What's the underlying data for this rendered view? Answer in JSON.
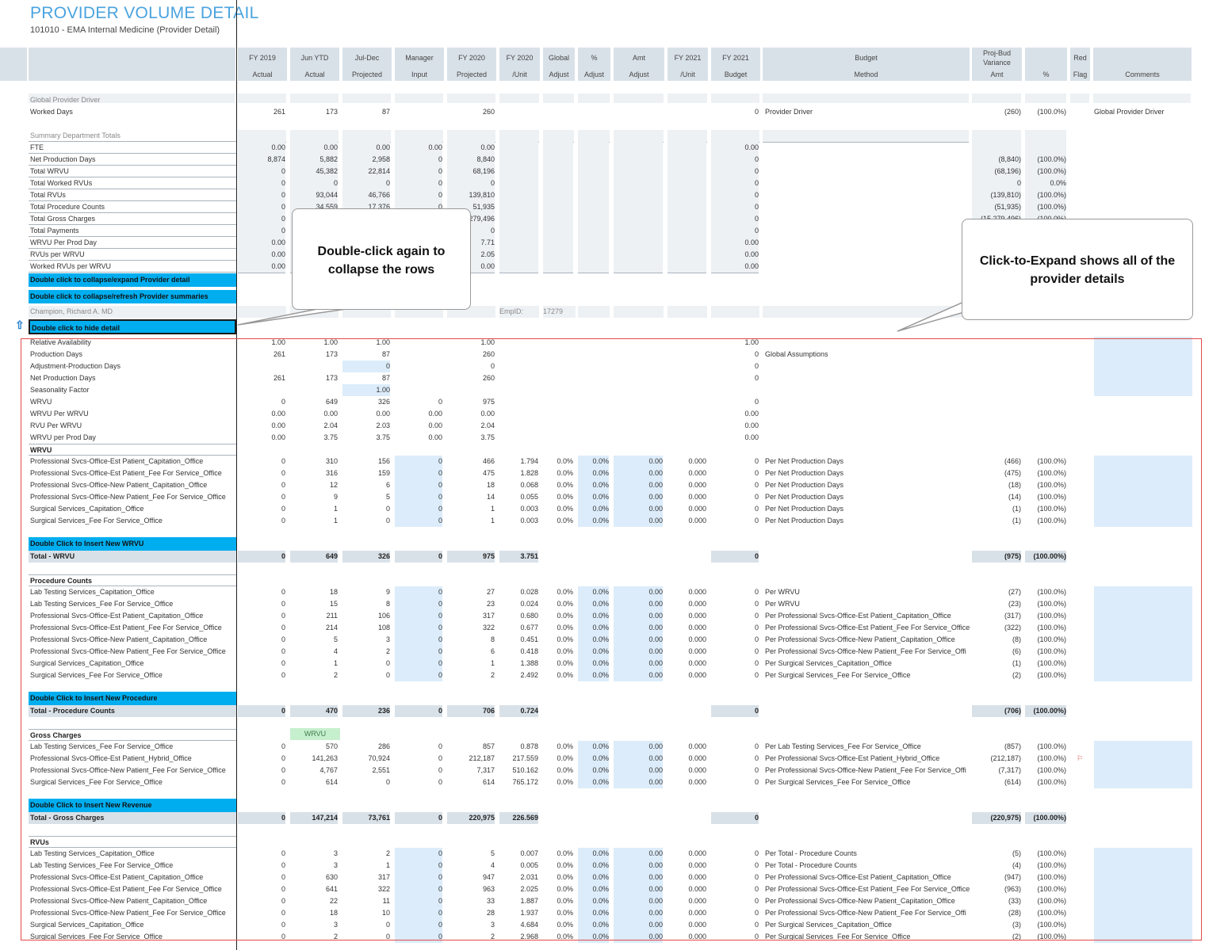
{
  "title": "PROVIDER VOLUME DETAIL",
  "subtitle": "101010 - EMA Internal Medicine (Provider Detail)",
  "columns": [
    {
      "l1": "FY 2019",
      "l2": "Actual"
    },
    {
      "l1": "Jun YTD",
      "l2": "Actual"
    },
    {
      "l1": "Jul-Dec",
      "l2": "Projected"
    },
    {
      "l1": "Manager",
      "l2": "Input"
    },
    {
      "l1": "FY 2020",
      "l2": "Projected"
    },
    {
      "l1": "FY 2020",
      "l2": "/Unit"
    },
    {
      "l1": "Global",
      "l2": "Adjust"
    },
    {
      "l1": "%",
      "l2": "Adjust"
    },
    {
      "l1": "Amt",
      "l2": "Adjust"
    },
    {
      "l1": "FY 2021",
      "l2": "/Unit"
    },
    {
      "l1": "FY 2021",
      "l2": "Budget"
    },
    {
      "l1": "Budget",
      "l2": "Method"
    },
    {
      "l1": "Proj-Bud Variance",
      "l2": "Amt"
    },
    {
      "l1": "",
      "l2": "%"
    },
    {
      "l1": "Red",
      "l2": "Flag"
    },
    {
      "l1": "",
      "l2": "Comments"
    }
  ],
  "global_driver": {
    "section": "Global Provider Driver",
    "row": {
      "label": "Worked Days",
      "v": [
        "261",
        "173",
        "87",
        "",
        "260",
        "",
        "",
        "",
        "",
        "",
        "0"
      ],
      "method": "Provider Driver",
      "var": "(260)",
      "pct": "(100.0%)",
      "comment": "Global Provider Driver"
    }
  },
  "summary": {
    "section": "Summary Department Totals",
    "rows": [
      {
        "label": "FTE",
        "v": [
          "0.00",
          "0.00",
          "0.00",
          "0.00",
          "0.00",
          "",
          "",
          "",
          "",
          "",
          "0.00"
        ],
        "var": "",
        "pct": ""
      },
      {
        "label": "Net Production Days",
        "v": [
          "8,874",
          "5,882",
          "2,958",
          "0",
          "8,840",
          "",
          "",
          "",
          "",
          "",
          "0"
        ],
        "var": "(8,840)",
        "pct": "(100.0%)"
      },
      {
        "label": "Total WRVU",
        "v": [
          "0",
          "45,382",
          "22,814",
          "0",
          "68,196",
          "",
          "",
          "",
          "",
          "",
          "0"
        ],
        "var": "(68,196)",
        "pct": "(100.0%)"
      },
      {
        "label": "Total Worked RVUs",
        "v": [
          "0",
          "0",
          "0",
          "0",
          "0",
          "",
          "",
          "",
          "",
          "",
          "0"
        ],
        "var": "0",
        "pct": "0.0%"
      },
      {
        "label": "Total RVUs",
        "v": [
          "0",
          "93,044",
          "46,766",
          "0",
          "139,810",
          "",
          "",
          "",
          "",
          "",
          "0"
        ],
        "var": "(139,810)",
        "pct": "(100.0%)"
      },
      {
        "label": "Total Procedure Counts",
        "v": [
          "0",
          "34,559",
          "17,376",
          "0",
          "51,935",
          "",
          "",
          "",
          "",
          "",
          "0"
        ],
        "var": "(51,935)",
        "pct": "(100.0%)"
      },
      {
        "label": "Total Gross Charges",
        "v": [
          "0",
          "",
          "",
          "",
          "279,496",
          "",
          "",
          "",
          "",
          "",
          "0"
        ],
        "var": "(15,279,496)",
        "pct": "(100.0%)"
      },
      {
        "label": "Total Payments",
        "v": [
          "0",
          "",
          "",
          "",
          "0",
          "",
          "",
          "",
          "",
          "",
          "0"
        ],
        "var": "",
        "pct": ""
      },
      {
        "label": "WRVU Per Prod Day",
        "v": [
          "0.00",
          "",
          "",
          "",
          "7.71",
          "",
          "",
          "",
          "",
          "",
          "0.00"
        ],
        "var": "",
        "pct": ""
      },
      {
        "label": "RVUs per WRVU",
        "v": [
          "0.00",
          "",
          "",
          "",
          "2.05",
          "",
          "",
          "",
          "",
          "",
          "0.00"
        ],
        "var": "",
        "pct": ""
      },
      {
        "label": "Worked RVUs per WRVU",
        "v": [
          "0.00",
          "",
          "",
          "",
          "0.00",
          "",
          "",
          "",
          "",
          "",
          "0.00"
        ],
        "var": "",
        "pct": ""
      }
    ]
  },
  "bands": {
    "collapse_expand": "Double click to collapse/expand Provider detail",
    "collapse_refresh": "Double click to collapse/refresh Provider summaries",
    "hide_detail": "Double click to hide detail",
    "insert_wrvu": "Double Click to Insert New WRVU",
    "insert_procedure": "Double Click to Insert New Procedure",
    "insert_revenue": "Double Click to Insert New Revenue"
  },
  "provider": {
    "name": "Champion, Richard A. MD",
    "empid_label": "EmpID:",
    "empid": "17279"
  },
  "assumptions": [
    {
      "label": "Relative Availability",
      "v": [
        "1.00",
        "1.00",
        "1.00",
        "",
        "1.00",
        "",
        "",
        "",
        "",
        "",
        "1.00"
      ],
      "method": ""
    },
    {
      "label": "Production Days",
      "v": [
        "261",
        "173",
        "87",
        "",
        "260",
        "",
        "",
        "",
        "",
        "",
        "0"
      ],
      "method": "Global Assumptions"
    },
    {
      "label": "Adjustment-Production Days",
      "v": [
        "",
        "",
        "0",
        "",
        "0",
        "",
        "",
        "",
        "",
        "",
        "0"
      ],
      "method": ""
    },
    {
      "label": "Net Production Days",
      "v": [
        "261",
        "173",
        "87",
        "",
        "260",
        "",
        "",
        "",
        "",
        "",
        "0"
      ],
      "method": ""
    },
    {
      "label": "Seasonality Factor",
      "v": [
        "",
        "",
        "1.00",
        "",
        "",
        "",
        "",
        "",
        "",
        "",
        ""
      ],
      "method": ""
    },
    {
      "label": "WRVU",
      "v": [
        "0",
        "649",
        "326",
        "0",
        "975",
        "",
        "",
        "",
        "",
        "",
        "0"
      ],
      "method": ""
    },
    {
      "label": "WRVU Per WRVU",
      "v": [
        "0.00",
        "0.00",
        "0.00",
        "0.00",
        "0.00",
        "",
        "",
        "",
        "",
        "",
        "0.00"
      ],
      "method": ""
    },
    {
      "label": "RVU Per WRVU",
      "v": [
        "0.00",
        "2.04",
        "2.03",
        "0.00",
        "2.04",
        "",
        "",
        "",
        "",
        "",
        "0.00"
      ],
      "method": ""
    },
    {
      "label": "WRVU per Prod Day",
      "v": [
        "0.00",
        "3.75",
        "3.75",
        "0.00",
        "3.75",
        "",
        "",
        "",
        "",
        "",
        "0.00"
      ],
      "method": ""
    }
  ],
  "wrvu": {
    "section": "WRVU",
    "rows": [
      {
        "label": "Professional Svcs-Office-Est Patient_Capitation_Office",
        "v": [
          "0",
          "310",
          "156",
          "0",
          "466",
          "1.794",
          "0.0%",
          "0.0%",
          "0.00",
          "0.000",
          "0"
        ],
        "method": "Per Net Production Days",
        "var": "(466)",
        "pct": "(100.0%)"
      },
      {
        "label": "Professional Svcs-Office-Est Patient_Fee For Service_Office",
        "v": [
          "0",
          "316",
          "159",
          "0",
          "475",
          "1.828",
          "0.0%",
          "0.0%",
          "0.00",
          "0.000",
          "0"
        ],
        "method": "Per Net Production Days",
        "var": "(475)",
        "pct": "(100.0%)"
      },
      {
        "label": "Professional Svcs-Office-New Patient_Capitation_Office",
        "v": [
          "0",
          "12",
          "6",
          "0",
          "18",
          "0.068",
          "0.0%",
          "0.0%",
          "0.00",
          "0.000",
          "0"
        ],
        "method": "Per Net Production Days",
        "var": "(18)",
        "pct": "(100.0%)"
      },
      {
        "label": "Professional Svcs-Office-New Patient_Fee For Service_Office",
        "v": [
          "0",
          "9",
          "5",
          "0",
          "14",
          "0.055",
          "0.0%",
          "0.0%",
          "0.00",
          "0.000",
          "0"
        ],
        "method": "Per Net Production Days",
        "var": "(14)",
        "pct": "(100.0%)"
      },
      {
        "label": "Surgical Services_Capitation_Office",
        "v": [
          "0",
          "1",
          "0",
          "0",
          "1",
          "0.003",
          "0.0%",
          "0.0%",
          "0.00",
          "0.000",
          "0"
        ],
        "method": "Per Net Production Days",
        "var": "(1)",
        "pct": "(100.0%)"
      },
      {
        "label": "Surgical Services_Fee For Service_Office",
        "v": [
          "0",
          "1",
          "0",
          "0",
          "1",
          "0.003",
          "0.0%",
          "0.0%",
          "0.00",
          "0.000",
          "0"
        ],
        "method": "Per Net Production Days",
        "var": "(1)",
        "pct": "(100.0%)"
      }
    ],
    "total": {
      "label": "Total - WRVU",
      "v": [
        "0",
        "649",
        "326",
        "0",
        "975",
        "3.751",
        "",
        "",
        "",
        "",
        "0"
      ],
      "var": "(975)",
      "pct": "(100.00%)"
    }
  },
  "procedures": {
    "section": "Procedure Counts",
    "rows": [
      {
        "label": "Lab Testing Services_Capitation_Office",
        "v": [
          "0",
          "18",
          "9",
          "0",
          "27",
          "0.028",
          "0.0%",
          "0.0%",
          "0.00",
          "0.000",
          "0"
        ],
        "method": "Per WRVU",
        "var": "(27)",
        "pct": "(100.0%)"
      },
      {
        "label": "Lab Testing Services_Fee For Service_Office",
        "v": [
          "0",
          "15",
          "8",
          "0",
          "23",
          "0.024",
          "0.0%",
          "0.0%",
          "0.00",
          "0.000",
          "0"
        ],
        "method": "Per WRVU",
        "var": "(23)",
        "pct": "(100.0%)"
      },
      {
        "label": "Professional Svcs-Office-Est Patient_Capitation_Office",
        "v": [
          "0",
          "211",
          "106",
          "0",
          "317",
          "0.680",
          "0.0%",
          "0.0%",
          "0.00",
          "0.000",
          "0"
        ],
        "method": "Per Professional Svcs-Office-Est Patient_Capitation_Office",
        "var": "(317)",
        "pct": "(100.0%)"
      },
      {
        "label": "Professional Svcs-Office-Est Patient_Fee For Service_Office",
        "v": [
          "0",
          "214",
          "108",
          "0",
          "322",
          "0.677",
          "0.0%",
          "0.0%",
          "0.00",
          "0.000",
          "0"
        ],
        "method": "Per Professional Svcs-Office-Est Patient_Fee For Service_Office",
        "var": "(322)",
        "pct": "(100.0%)"
      },
      {
        "label": "Professional Svcs-Office-New Patient_Capitation_Office",
        "v": [
          "0",
          "5",
          "3",
          "0",
          "8",
          "0.451",
          "0.0%",
          "0.0%",
          "0.00",
          "0.000",
          "0"
        ],
        "method": "Per Professional Svcs-Office-New Patient_Capitation_Office",
        "var": "(8)",
        "pct": "(100.0%)"
      },
      {
        "label": "Professional Svcs-Office-New Patient_Fee For Service_Office",
        "v": [
          "0",
          "4",
          "2",
          "0",
          "6",
          "0.418",
          "0.0%",
          "0.0%",
          "0.00",
          "0.000",
          "0"
        ],
        "method": "Per Professional Svcs-Office-New Patient_Fee For Service_Offi",
        "var": "(6)",
        "pct": "(100.0%)"
      },
      {
        "label": "Surgical Services_Capitation_Office",
        "v": [
          "0",
          "1",
          "0",
          "0",
          "1",
          "1.388",
          "0.0%",
          "0.0%",
          "0.00",
          "0.000",
          "0"
        ],
        "method": "Per Surgical Services_Capitation_Office",
        "var": "(1)",
        "pct": "(100.0%)"
      },
      {
        "label": "Surgical Services_Fee For Service_Office",
        "v": [
          "0",
          "2",
          "0",
          "0",
          "2",
          "2.492",
          "0.0%",
          "0.0%",
          "0.00",
          "0.000",
          "0"
        ],
        "method": "Per Surgical Services_Fee For Service_Office",
        "var": "(2)",
        "pct": "(100.0%)"
      }
    ],
    "total": {
      "label": "Total - Procedure Counts",
      "v": [
        "0",
        "470",
        "236",
        "0",
        "706",
        "0.724",
        "",
        "",
        "",
        "",
        "0"
      ],
      "var": "(706)",
      "pct": "(100.00%)"
    }
  },
  "charges": {
    "section": "Gross Charges",
    "tag": "WRVU",
    "rows": [
      {
        "label": "Lab Testing Services_Fee For Service_Office",
        "v": [
          "0",
          "570",
          "286",
          "0",
          "857",
          "0.878",
          "0.0%",
          "0.0%",
          "0.00",
          "0.000",
          "0"
        ],
        "method": "Per Lab Testing Services_Fee For Service_Office",
        "var": "(857)",
        "pct": "(100.0%)",
        "flag": ""
      },
      {
        "label": "Professional Svcs-Office-Est Patient_Hybrid_Office",
        "v": [
          "0",
          "141,263",
          "70,924",
          "0",
          "212,187",
          "217.559",
          "0.0%",
          "0.0%",
          "0.00",
          "0.000",
          "0"
        ],
        "method": "Per Professional Svcs-Office-Est Patient_Hybrid_Office",
        "var": "(212,187)",
        "pct": "(100.0%)",
        "flag": "⚐"
      },
      {
        "label": "Professional Svcs-Office-New Patient_Fee For Service_Office",
        "v": [
          "0",
          "4,767",
          "2,551",
          "0",
          "7,317",
          "510.162",
          "0.0%",
          "0.0%",
          "0.00",
          "0.000",
          "0"
        ],
        "method": "Per Professional Svcs-Office-New Patient_Fee For Service_Offi",
        "var": "(7,317)",
        "pct": "(100.0%)",
        "flag": ""
      },
      {
        "label": "Surgical Services_Fee For Service_Office",
        "v": [
          "0",
          "614",
          "0",
          "0",
          "614",
          "765.172",
          "0.0%",
          "0.0%",
          "0.00",
          "0.000",
          "0"
        ],
        "method": "Per Surgical Services_Fee For Service_Office",
        "var": "(614)",
        "pct": "(100.0%)",
        "flag": ""
      }
    ],
    "total": {
      "label": "Total - Gross Charges",
      "v": [
        "0",
        "147,214",
        "73,761",
        "0",
        "220,975",
        "226.569",
        "",
        "",
        "",
        "",
        "0"
      ],
      "var": "(220,975)",
      "pct": "(100.00%)"
    }
  },
  "rvus": {
    "section": "RVUs",
    "rows": [
      {
        "label": "Lab Testing Services_Capitation_Office",
        "v": [
          "0",
          "3",
          "2",
          "0",
          "5",
          "0.007",
          "0.0%",
          "0.0%",
          "0.00",
          "0.000",
          "0"
        ],
        "method": "Per Total - Procedure Counts",
        "var": "(5)",
        "pct": "(100.0%)"
      },
      {
        "label": "Lab Testing Services_Fee For Service_Office",
        "v": [
          "0",
          "3",
          "1",
          "0",
          "4",
          "0.005",
          "0.0%",
          "0.0%",
          "0.00",
          "0.000",
          "0"
        ],
        "method": "Per Total - Procedure Counts",
        "var": "(4)",
        "pct": "(100.0%)"
      },
      {
        "label": "Professional Svcs-Office-Est Patient_Capitation_Office",
        "v": [
          "0",
          "630",
          "317",
          "0",
          "947",
          "2.031",
          "0.0%",
          "0.0%",
          "0.00",
          "0.000",
          "0"
        ],
        "method": "Per Professional Svcs-Office-Est Patient_Capitation_Office",
        "var": "(947)",
        "pct": "(100.0%)"
      },
      {
        "label": "Professional Svcs-Office-Est Patient_Fee For Service_Office",
        "v": [
          "0",
          "641",
          "322",
          "0",
          "963",
          "2.025",
          "0.0%",
          "0.0%",
          "0.00",
          "0.000",
          "0"
        ],
        "method": "Per Professional Svcs-Office-Est Patient_Fee For Service_Office",
        "var": "(963)",
        "pct": "(100.0%)"
      },
      {
        "label": "Professional Svcs-Office-New Patient_Capitation_Office",
        "v": [
          "0",
          "22",
          "11",
          "0",
          "33",
          "1.887",
          "0.0%",
          "0.0%",
          "0.00",
          "0.000",
          "0"
        ],
        "method": "Per Professional Svcs-Office-New Patient_Capitation_Office",
        "var": "(33)",
        "pct": "(100.0%)"
      },
      {
        "label": "Professional Svcs-Office-New Patient_Fee For Service_Office",
        "v": [
          "0",
          "18",
          "10",
          "0",
          "28",
          "1.937",
          "0.0%",
          "0.0%",
          "0.00",
          "0.000",
          "0"
        ],
        "method": "Per Professional Svcs-Office-New Patient_Fee For Service_Offi",
        "var": "(28)",
        "pct": "(100.0%)"
      },
      {
        "label": "Surgical Services_Capitation_Office",
        "v": [
          "0",
          "3",
          "0",
          "0",
          "3",
          "4.684",
          "0.0%",
          "0.0%",
          "0.00",
          "0.000",
          "0"
        ],
        "method": "Per Surgical Services_Capitation_Office",
        "var": "(3)",
        "pct": "(100.0%)"
      },
      {
        "label": "Surgical Services_Fee For Service_Office",
        "v": [
          "0",
          "2",
          "0",
          "0",
          "2",
          "2.968",
          "0.0%",
          "0.0%",
          "0.00",
          "0.000",
          "0"
        ],
        "method": "Per Surgical Services_Fee For Service_Office",
        "var": "(2)",
        "pct": "(100.0%)"
      }
    ]
  },
  "callouts": {
    "collapse": "Double-click again to collapse the rows",
    "expand": "Click-to-Expand shows all of the provider details"
  },
  "icons": {
    "collapse_arrow": "up-arrow-icon"
  },
  "colors": {
    "accent": "#00aeef",
    "title": "#4aa3df",
    "header": "#d9e1e8",
    "input": "#dcecfa",
    "highlight_border": "#e24a4a",
    "tag_bg": "#c6efce"
  }
}
